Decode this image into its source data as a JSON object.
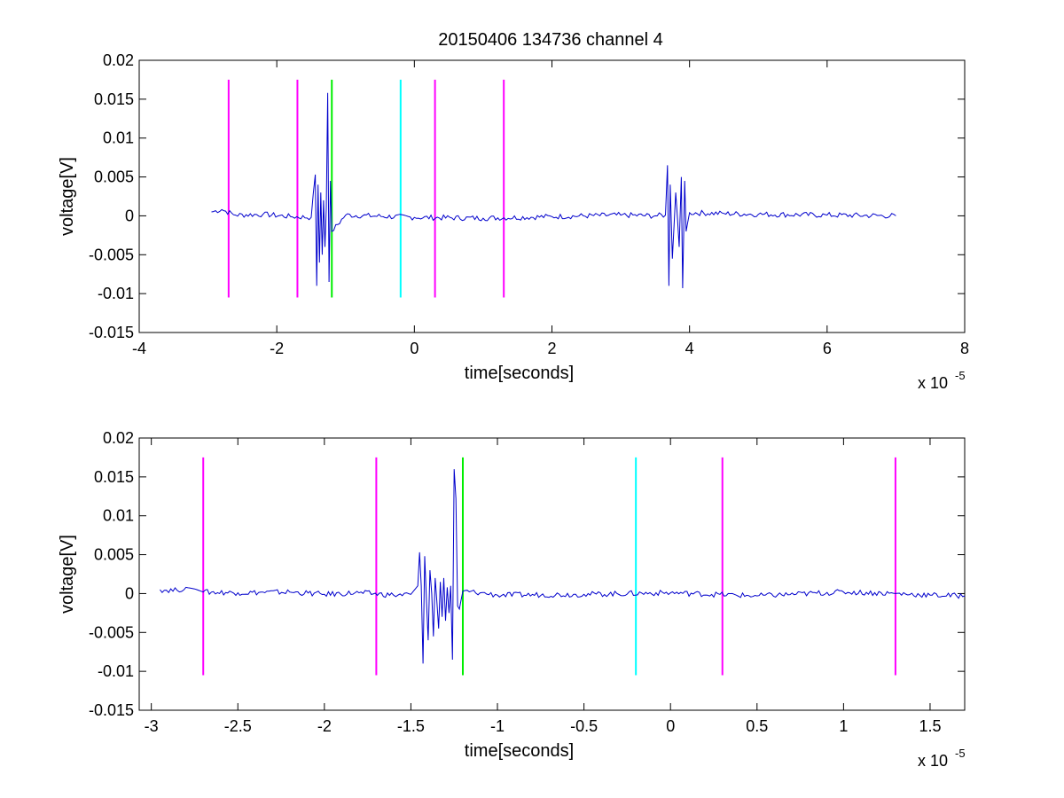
{
  "figure": {
    "title": "20150406 134736 channel 4"
  },
  "colors": {
    "signal": "#0000cc",
    "magenta": "#ff00ff",
    "green": "#00ee00",
    "cyan": "#00ffff"
  },
  "chart_data": [
    {
      "type": "line",
      "title": "20150406 134736 channel 4",
      "xlabel": "time[seconds]",
      "ylabel": "voltage[V]",
      "x_multiplier": "x 10",
      "x_multiplier_exp": "-5",
      "xlim": [
        -4,
        8
      ],
      "ylim": [
        -0.015,
        0.02
      ],
      "xticks": [
        -4,
        -2,
        0,
        2,
        4,
        6,
        8
      ],
      "xtick_labels": [
        "-4",
        "-2",
        "0",
        "2",
        "4",
        "6",
        "8"
      ],
      "yticks": [
        -0.015,
        -0.01,
        -0.005,
        0,
        0.005,
        0.01,
        0.015,
        0.02
      ],
      "ytick_labels": [
        "-0.015",
        "-0.01",
        "-0.005",
        "0",
        "0.005",
        "0.01",
        "0.015",
        "0.02"
      ],
      "grid": false,
      "series": [
        {
          "color": "#0000cc",
          "x": [
            -2.95,
            -2.8,
            -2.6,
            -2.2,
            -1.8,
            -1.5,
            -1.44,
            -1.42,
            -1.4,
            -1.38,
            -1.36,
            -1.34,
            -1.32,
            -1.3,
            -1.28,
            -1.26,
            -1.24,
            -1.22,
            -1.2,
            -1.0,
            0,
            1,
            2,
            3,
            3.5,
            3.65,
            3.68,
            3.7,
            3.72,
            3.75,
            3.8,
            3.85,
            3.88,
            3.9,
            3.93,
            3.95,
            4.0,
            4.5,
            5,
            6,
            7.0
          ],
          "y": [
            0.0005,
            0.0008,
            0.0001,
            0.0002,
            -0.0001,
            -0.0002,
            0.0053,
            -0.009,
            0.004,
            -0.006,
            0.003,
            -0.005,
            0.002,
            -0.004,
            0.001,
            0.0158,
            -0.0085,
            0.0045,
            -0.002,
            0.0001,
            -0.0002,
            -0.0003,
            -0.0001,
            0.0001,
            0.0,
            0.0001,
            0.0065,
            -0.009,
            0.004,
            -0.0055,
            0.003,
            -0.004,
            0.005,
            -0.0093,
            0.0045,
            -0.002,
            0.0004,
            0.0003,
            0.0002,
            0.0001,
            0.0
          ]
        }
      ],
      "vlines": [
        {
          "x": -2.7,
          "color": "#ff00ff",
          "ymin": -0.0105,
          "ymax": 0.0175
        },
        {
          "x": -1.7,
          "color": "#ff00ff",
          "ymin": -0.0105,
          "ymax": 0.0175
        },
        {
          "x": -1.2,
          "color": "#00ee00",
          "ymin": -0.0105,
          "ymax": 0.0175
        },
        {
          "x": -0.2,
          "color": "#00ffff",
          "ymin": -0.0105,
          "ymax": 0.0175
        },
        {
          "x": 0.3,
          "color": "#ff00ff",
          "ymin": -0.0105,
          "ymax": 0.0175
        },
        {
          "x": 1.3,
          "color": "#ff00ff",
          "ymin": -0.0105,
          "ymax": 0.0175
        }
      ]
    },
    {
      "type": "line",
      "title": "",
      "xlabel": "time[seconds]",
      "ylabel": "voltage[V]",
      "x_multiplier": "x 10",
      "x_multiplier_exp": "-5",
      "xlim": [
        -3.07,
        1.7
      ],
      "ylim": [
        -0.015,
        0.02
      ],
      "xticks": [
        -3,
        -2.5,
        -2,
        -1.5,
        -1,
        -0.5,
        0,
        0.5,
        1,
        1.5
      ],
      "xtick_labels": [
        "-3",
        "-2.5",
        "-2",
        "-1.5",
        "-1",
        "-0.5",
        "0",
        "0.5",
        "1",
        "1.5"
      ],
      "yticks": [
        -0.015,
        -0.01,
        -0.005,
        0,
        0.005,
        0.01,
        0.015,
        0.02
      ],
      "ytick_labels": [
        "-0.015",
        "-0.01",
        "-0.005",
        "0",
        "0.005",
        "0.01",
        "0.015",
        "0.02"
      ],
      "grid": false,
      "series": [
        {
          "color": "#0000cc",
          "x": [
            -2.95,
            -2.85,
            -2.8,
            -2.75,
            -2.7,
            -2.5,
            -2.2,
            -2.0,
            -1.8,
            -1.6,
            -1.5,
            -1.46,
            -1.45,
            -1.44,
            -1.43,
            -1.42,
            -1.41,
            -1.4,
            -1.39,
            -1.38,
            -1.37,
            -1.36,
            -1.35,
            -1.34,
            -1.33,
            -1.32,
            -1.31,
            -1.3,
            -1.29,
            -1.28,
            -1.27,
            -1.26,
            -1.25,
            -1.24,
            -1.23,
            -1.22,
            -1.2,
            -1.1,
            -1.0,
            -0.5,
            0,
            0.5,
            1.0,
            1.3,
            1.5,
            1.7
          ],
          "y": [
            0.0005,
            0.0004,
            0.0008,
            0.0006,
            0.0002,
            0.0001,
            0.0002,
            -0.0001,
            0.0001,
            -0.0002,
            -0.0001,
            0.001,
            0.0053,
            0.001,
            -0.009,
            0.0048,
            -0.001,
            -0.006,
            0.003,
            0.0,
            -0.0055,
            0.002,
            -0.001,
            -0.0045,
            0.0015,
            -0.003,
            0.002,
            -0.0035,
            0.0008,
            -0.0025,
            0.001,
            -0.0085,
            0.016,
            0.0122,
            -0.0016,
            -0.002,
            0.0003,
            0.0001,
            -0.0002,
            -0.0001,
            0.0001,
            -0.0003,
            0.0002,
            0.0,
            -0.0002,
            -0.0003
          ]
        }
      ],
      "vlines": [
        {
          "x": -2.7,
          "color": "#ff00ff",
          "ymin": -0.0105,
          "ymax": 0.0175
        },
        {
          "x": -1.7,
          "color": "#ff00ff",
          "ymin": -0.0105,
          "ymax": 0.0175
        },
        {
          "x": -1.2,
          "color": "#00ee00",
          "ymin": -0.0105,
          "ymax": 0.0175
        },
        {
          "x": -0.2,
          "color": "#00ffff",
          "ymin": -0.0105,
          "ymax": 0.0175
        },
        {
          "x": 0.3,
          "color": "#ff00ff",
          "ymin": -0.0105,
          "ymax": 0.0175
        },
        {
          "x": 1.3,
          "color": "#ff00ff",
          "ymin": -0.0105,
          "ymax": 0.0175
        }
      ]
    }
  ]
}
